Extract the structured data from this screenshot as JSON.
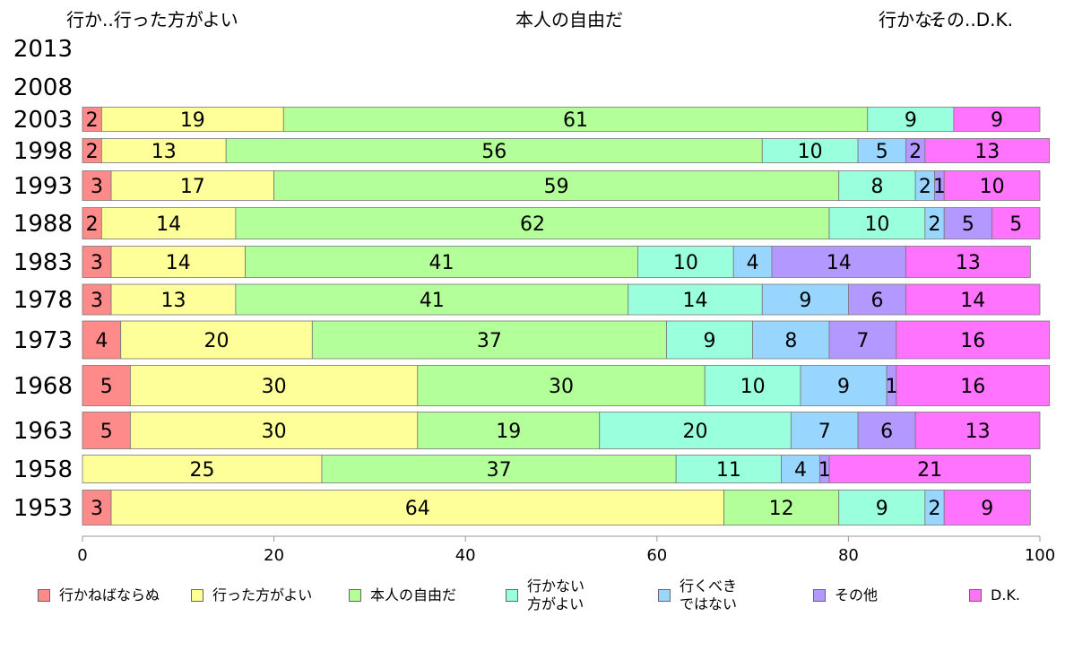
{
  "top_labels": {
    "left": "行か..行った方がよい",
    "center": "本人の自由だ",
    "right": "行かな..",
    "right_overlap": "その..D.K."
  },
  "chart_data": {
    "type": "bar",
    "orientation": "horizontal",
    "stacked": true,
    "xlim": [
      0,
      100
    ],
    "xticks": [
      0,
      20,
      40,
      60,
      80,
      100
    ],
    "categories": [
      "2013",
      "2008",
      "2003",
      "1998",
      "1993",
      "1988",
      "1983",
      "1978",
      "1973",
      "1968",
      "1963",
      "1958",
      "1953"
    ],
    "series": [
      {
        "name": "行かねばならぬ",
        "color": "#ff8a8a",
        "values": [
          null,
          null,
          2,
          2,
          3,
          2,
          3,
          3,
          4,
          5,
          5,
          0,
          3
        ]
      },
      {
        "name": "行った方がよい",
        "color": "#ffff99",
        "values": [
          null,
          null,
          19,
          13,
          17,
          14,
          14,
          13,
          20,
          30,
          30,
          25,
          64
        ]
      },
      {
        "name": "本人の自由だ",
        "color": "#b3ff99",
        "values": [
          null,
          null,
          61,
          56,
          59,
          62,
          41,
          41,
          37,
          30,
          19,
          37,
          12
        ]
      },
      {
        "name": "行かない\n方がよい",
        "color": "#99ffdd",
        "values": [
          null,
          null,
          9,
          10,
          8,
          10,
          10,
          14,
          9,
          10,
          20,
          11,
          9
        ]
      },
      {
        "name": "行くべき\nではない",
        "color": "#99d6ff",
        "values": [
          null,
          null,
          0,
          5,
          2,
          2,
          4,
          9,
          8,
          9,
          7,
          4,
          2
        ]
      },
      {
        "name": "その他",
        "color": "#b399ff",
        "values": [
          null,
          null,
          0,
          2,
          1,
          5,
          14,
          6,
          7,
          1,
          6,
          1,
          0
        ]
      },
      {
        "name": "D.K.",
        "color": "#ff73ff",
        "values": [
          null,
          null,
          9,
          13,
          10,
          5,
          13,
          14,
          16,
          16,
          13,
          21,
          9
        ]
      }
    ]
  }
}
